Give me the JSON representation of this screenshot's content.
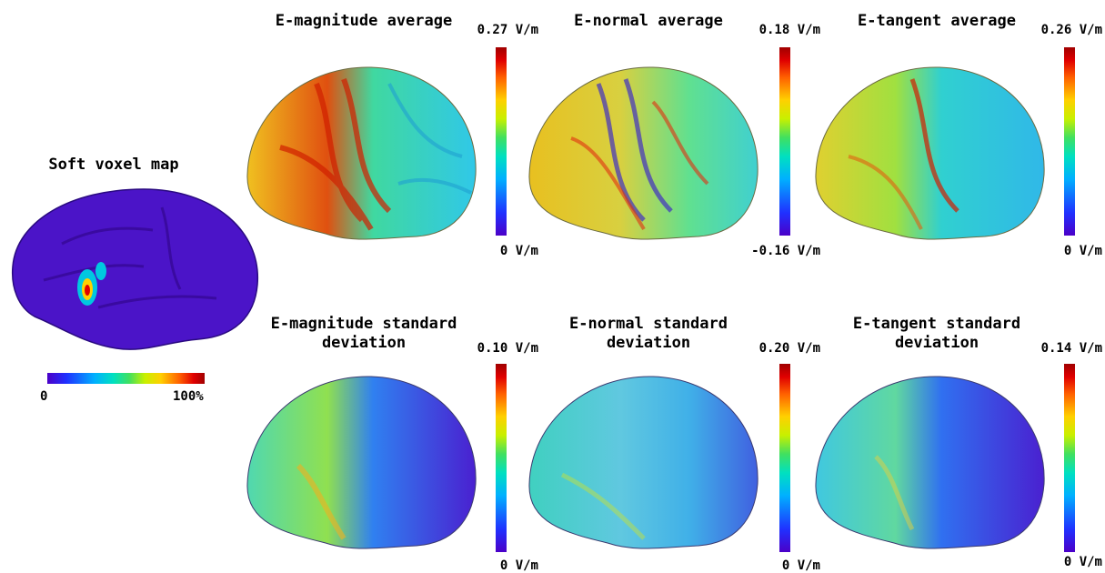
{
  "soft_map": {
    "title": "Soft voxel map",
    "scale_min": "0",
    "scale_max": "100%"
  },
  "panels": [
    {
      "title": "E-magnitude average",
      "max": "0.27 V/m",
      "min": "0 V/m"
    },
    {
      "title": "E-normal average",
      "max": "0.18 V/m",
      "min": "-0.16 V/m"
    },
    {
      "title": "E-tangent average",
      "max": "0.26 V/m",
      "min": "0 V/m"
    },
    {
      "title_line1": "E-magnitude standard",
      "title_line2": "deviation",
      "max": "0.10 V/m",
      "min": "0 V/m"
    },
    {
      "title_line1": "E-normal standard",
      "title_line2": "deviation",
      "max": "0.20 V/m",
      "min": "0 V/m"
    },
    {
      "title_line1": "E-tangent standard",
      "title_line2": "deviation",
      "max": "0.14 V/m",
      "min": "0 V/m"
    }
  ],
  "colors": {
    "low": "#4b00c8",
    "mid": "#00d8d0",
    "high": "#c80000"
  }
}
